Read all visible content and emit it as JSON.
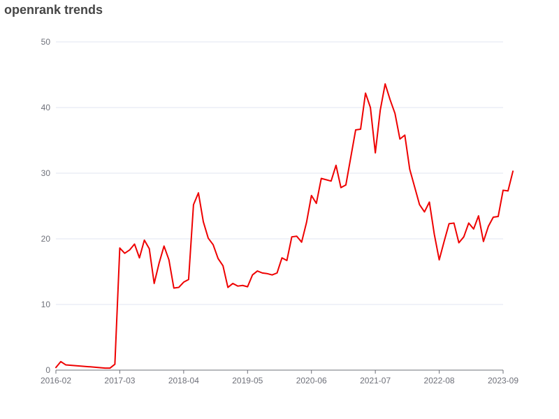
{
  "chart_data": {
    "type": "line",
    "title": "openrank trends",
    "xlabel": "",
    "ylabel": "",
    "ylim": [
      0,
      50
    ],
    "y_ticks": [
      "0",
      "10",
      "20",
      "30",
      "40",
      "50"
    ],
    "x_ticks": [
      "2016-02",
      "2017-03",
      "2018-04",
      "2019-05",
      "2020-06",
      "2021-07",
      "2022-08",
      "2023-09"
    ],
    "x_range": [
      "2016-02",
      "2023-09"
    ],
    "grid": true,
    "legend": "none",
    "series": [
      {
        "color": "#ee0000",
        "points": [
          [
            "2016-02",
            0.4
          ],
          [
            "2016-03",
            1.3
          ],
          [
            "2016-04",
            0.8
          ],
          [
            "2016-09",
            0.5
          ],
          [
            "2016-12",
            0.3
          ],
          [
            "2017-01",
            0.3
          ],
          [
            "2017-02",
            0.9
          ],
          [
            "2017-03",
            18.6
          ],
          [
            "2017-04",
            17.8
          ],
          [
            "2017-05",
            18.3
          ],
          [
            "2017-06",
            19.2
          ],
          [
            "2017-07",
            17.1
          ],
          [
            "2017-08",
            19.8
          ],
          [
            "2017-09",
            18.5
          ],
          [
            "2017-10",
            13.2
          ],
          [
            "2017-11",
            16.3
          ],
          [
            "2017-12",
            18.9
          ],
          [
            "2018-01",
            16.8
          ],
          [
            "2018-02",
            12.5
          ],
          [
            "2018-03",
            12.6
          ],
          [
            "2018-04",
            13.4
          ],
          [
            "2018-05",
            13.8
          ],
          [
            "2018-06",
            25.2
          ],
          [
            "2018-07",
            27.0
          ],
          [
            "2018-08",
            22.6
          ],
          [
            "2018-09",
            20.1
          ],
          [
            "2018-10",
            19.1
          ],
          [
            "2018-11",
            17.0
          ],
          [
            "2018-12",
            15.9
          ],
          [
            "2019-01",
            12.6
          ],
          [
            "2019-02",
            13.2
          ],
          [
            "2019-03",
            12.8
          ],
          [
            "2019-04",
            12.9
          ],
          [
            "2019-05",
            12.7
          ],
          [
            "2019-06",
            14.5
          ],
          [
            "2019-07",
            15.1
          ],
          [
            "2019-08",
            14.8
          ],
          [
            "2019-09",
            14.7
          ],
          [
            "2019-10",
            14.5
          ],
          [
            "2019-11",
            14.8
          ],
          [
            "2019-12",
            17.1
          ],
          [
            "2020-01",
            16.7
          ],
          [
            "2020-02",
            20.3
          ],
          [
            "2020-03",
            20.4
          ],
          [
            "2020-04",
            19.5
          ],
          [
            "2020-05",
            22.5
          ],
          [
            "2020-06",
            26.6
          ],
          [
            "2020-07",
            25.4
          ],
          [
            "2020-08",
            29.2
          ],
          [
            "2020-09",
            29.0
          ],
          [
            "2020-10",
            28.8
          ],
          [
            "2020-11",
            31.2
          ],
          [
            "2020-12",
            27.8
          ],
          [
            "2021-01",
            28.2
          ],
          [
            "2021-02",
            32.4
          ],
          [
            "2021-03",
            36.6
          ],
          [
            "2021-04",
            36.7
          ],
          [
            "2021-05",
            42.2
          ],
          [
            "2021-06",
            40.0
          ],
          [
            "2021-07",
            33.1
          ],
          [
            "2021-08",
            39.6
          ],
          [
            "2021-09",
            43.6
          ],
          [
            "2021-10",
            41.2
          ],
          [
            "2021-11",
            39.1
          ],
          [
            "2021-12",
            35.2
          ],
          [
            "2022-01",
            35.8
          ],
          [
            "2022-02",
            30.6
          ],
          [
            "2022-03",
            27.9
          ],
          [
            "2022-04",
            25.2
          ],
          [
            "2022-05",
            24.1
          ],
          [
            "2022-06",
            25.6
          ],
          [
            "2022-07",
            20.7
          ],
          [
            "2022-08",
            16.8
          ],
          [
            "2022-09",
            19.6
          ],
          [
            "2022-10",
            22.3
          ],
          [
            "2022-11",
            22.4
          ],
          [
            "2022-12",
            19.4
          ],
          [
            "2023-01",
            20.3
          ],
          [
            "2023-02",
            22.4
          ],
          [
            "2023-03",
            21.5
          ],
          [
            "2023-04",
            23.5
          ],
          [
            "2023-05",
            19.6
          ],
          [
            "2023-06",
            21.9
          ],
          [
            "2023-07",
            23.3
          ],
          [
            "2023-08",
            23.4
          ],
          [
            "2023-09",
            27.4
          ],
          [
            "2023-10",
            27.3
          ],
          [
            "2023-11",
            30.3
          ]
        ]
      }
    ]
  }
}
